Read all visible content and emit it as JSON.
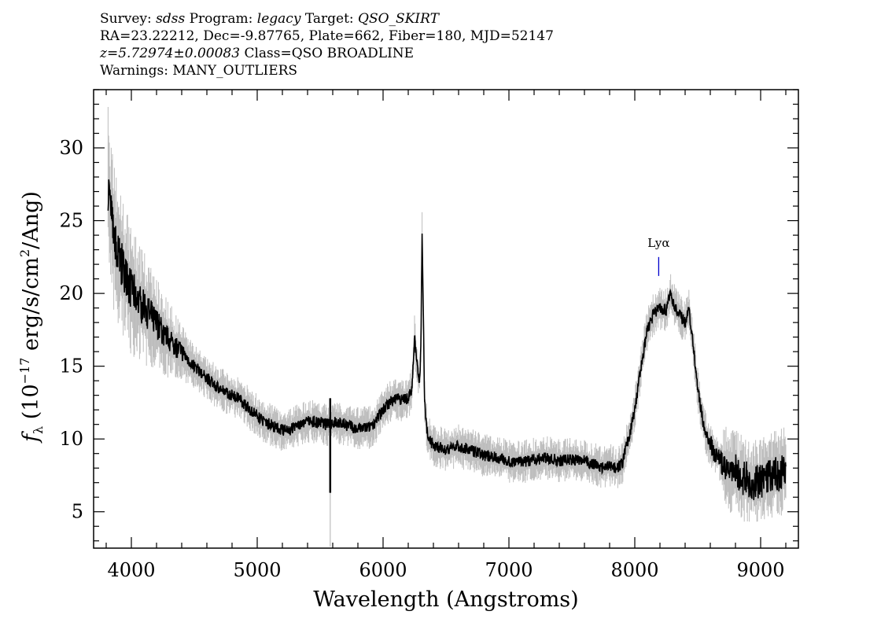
{
  "header": {
    "line1": {
      "survey_label": "Survey: ",
      "survey": "sdss",
      "program_label": " Program: ",
      "program": "legacy",
      "target_label": " Target: ",
      "target": "QSO_SKIRT"
    },
    "line2": "RA=23.22212, Dec=-9.87765, Plate=662, Fiber=180, MJD=52147",
    "line3": {
      "z": "z=5.72974±0.00083",
      "class": " Class=QSO BROADLINE"
    },
    "line4": "Warnings: MANY_OUTLIERS"
  },
  "chart_data": {
    "type": "line",
    "xlabel": "Wavelength (Angstroms)",
    "ylabel": {
      "prefix": "f",
      "sub": "λ",
      "unit_start": " (10",
      "exp": "−17",
      "unit_mid": " erg/s/cm",
      "exp2": "2",
      "unit_end": "/Ang)"
    },
    "xlim": [
      3700,
      9300
    ],
    "ylim": [
      2.5,
      34
    ],
    "x_ticks": [
      4000,
      5000,
      6000,
      7000,
      8000,
      9000
    ],
    "y_ticks": [
      5,
      10,
      15,
      20,
      25,
      30
    ],
    "x_tick_labels": [
      "4000",
      "5000",
      "6000",
      "7000",
      "8000",
      "9000"
    ],
    "y_tick_labels": [
      "5",
      "10",
      "15",
      "20",
      "25",
      "30"
    ],
    "grid": false,
    "annotations": [
      {
        "text": "Lyα",
        "x": 8190,
        "line_color": "#0000cc"
      }
    ],
    "colors": {
      "flux": "#000000",
      "noise": "#bdbdbd",
      "line_marker": "#0000cc"
    },
    "series": [
      {
        "x": [
          3815,
          3830,
          3850,
          3880,
          3920,
          3960,
          4000,
          4050,
          4100,
          4150,
          4200,
          4250,
          4300,
          4350,
          4400,
          4450,
          4500,
          4550,
          4600,
          4650,
          4700,
          4750,
          4800,
          4850,
          4900,
          4950,
          5000,
          5050,
          5100,
          5150,
          5200,
          5250,
          5300,
          5350,
          5400,
          5450,
          5500,
          5550,
          5580,
          5600,
          5650,
          5700,
          5750,
          5800,
          5850,
          5900,
          5950,
          6000,
          6050,
          6100,
          6150,
          6200,
          6230,
          6250,
          6270,
          6290,
          6300,
          6310,
          6330,
          6350,
          6380,
          6420,
          6500,
          6600,
          6700,
          6800,
          6900,
          7000,
          7100,
          7200,
          7300,
          7400,
          7500,
          7600,
          7700,
          7750,
          7800,
          7850,
          7900,
          7950,
          8000,
          8050,
          8100,
          8150,
          8200,
          8250,
          8280,
          8300,
          8350,
          8400,
          8430,
          8450,
          8500,
          8550,
          8600,
          8650,
          8700,
          8750,
          8800,
          8850,
          8900,
          8950,
          9000,
          9050,
          9100,
          9150,
          9200
        ],
        "y": [
          27.5,
          26.0,
          24.5,
          23.0,
          22.0,
          21.0,
          20.3,
          19.5,
          19.0,
          18.5,
          18.0,
          17.3,
          16.8,
          16.3,
          16.0,
          15.5,
          15.0,
          14.6,
          14.2,
          13.8,
          13.5,
          13.2,
          13.0,
          12.8,
          12.4,
          12.0,
          11.6,
          11.2,
          11.0,
          10.8,
          10.6,
          10.6,
          10.8,
          11.0,
          11.2,
          11.2,
          11.1,
          11.0,
          11.0,
          11.2,
          11.1,
          11.0,
          10.8,
          10.7,
          10.8,
          10.8,
          11.3,
          12.0,
          12.5,
          12.8,
          12.7,
          12.8,
          13.5,
          17.0,
          15.0,
          14.0,
          16.0,
          24.5,
          12.5,
          10.5,
          9.8,
          9.4,
          9.3,
          9.5,
          9.2,
          8.9,
          8.7,
          8.5,
          8.4,
          8.6,
          8.7,
          8.5,
          8.6,
          8.5,
          8.2,
          8.0,
          8.2,
          8.0,
          8.3,
          10.0,
          12.0,
          15.0,
          17.5,
          18.6,
          19.0,
          18.8,
          20.0,
          19.4,
          18.6,
          18.0,
          19.0,
          17.5,
          13.5,
          10.8,
          9.5,
          9.0,
          8.2,
          7.6,
          7.8,
          7.4,
          7.2,
          7.0,
          7.1,
          7.4,
          7.6,
          7.6,
          8.0
        ]
      }
    ]
  }
}
